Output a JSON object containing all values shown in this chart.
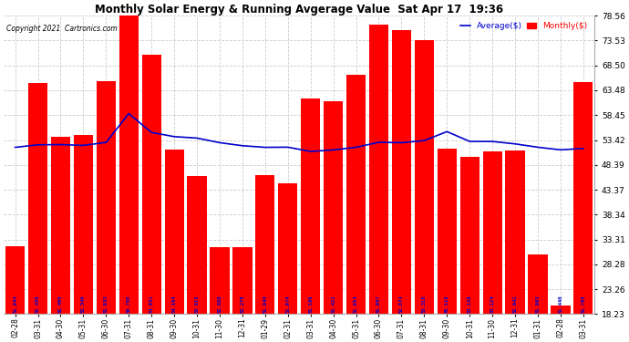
{
  "title": "Monthly Solar Energy & Running Avgerage Value  Sat Apr 17  19:36",
  "copyright": "Copyright 2021  Cartronics.com",
  "legend_avg": "Average($)",
  "legend_monthly": "Monthly($)",
  "categories": [
    "02-28",
    "03-31",
    "04-30",
    "05-31",
    "06-30",
    "07-31",
    "08-31",
    "09-30",
    "10-31",
    "11-30",
    "12-31",
    "01-29",
    "02-31",
    "03-31",
    "04-30",
    "05-31",
    "06-30",
    "07-31",
    "08-31",
    "09-30",
    "10-31",
    "11-30",
    "12-31",
    "01-31",
    "02-28",
    "03-31"
  ],
  "bar_values": [
    31.94,
    65.0,
    54.05,
    54.4,
    65.33,
    78.59,
    70.59,
    51.54,
    46.15,
    31.7,
    31.7,
    46.4,
    44.74,
    61.89,
    61.24,
    66.54,
    76.67,
    75.67,
    73.53,
    51.74,
    50.1,
    51.19,
    51.24,
    30.24,
    20.0,
    65.05
  ],
  "avg_values": [
    51.944,
    52.45,
    52.495,
    52.34,
    52.933,
    58.759,
    54.951,
    54.104,
    53.815,
    52.886,
    52.27,
    51.94,
    51.974,
    51.109,
    51.421,
    51.954,
    52.967,
    52.874,
    53.31,
    55.119,
    53.138,
    53.124,
    52.641,
    51.963,
    51.44,
    51.705
  ],
  "bar_color": "#ff0000",
  "avg_line_color": "#0000cc",
  "avg_text_color": "#0000cc",
  "bg_color": "#ffffff",
  "grid_color": "#cccccc",
  "yticks": [
    18.23,
    23.26,
    28.28,
    33.31,
    38.34,
    43.37,
    48.39,
    53.42,
    58.45,
    63.48,
    68.5,
    73.53,
    78.56
  ],
  "ymin": 18.23,
  "ymax": 78.56,
  "fig_width": 6.9,
  "fig_height": 3.75,
  "dpi": 100
}
